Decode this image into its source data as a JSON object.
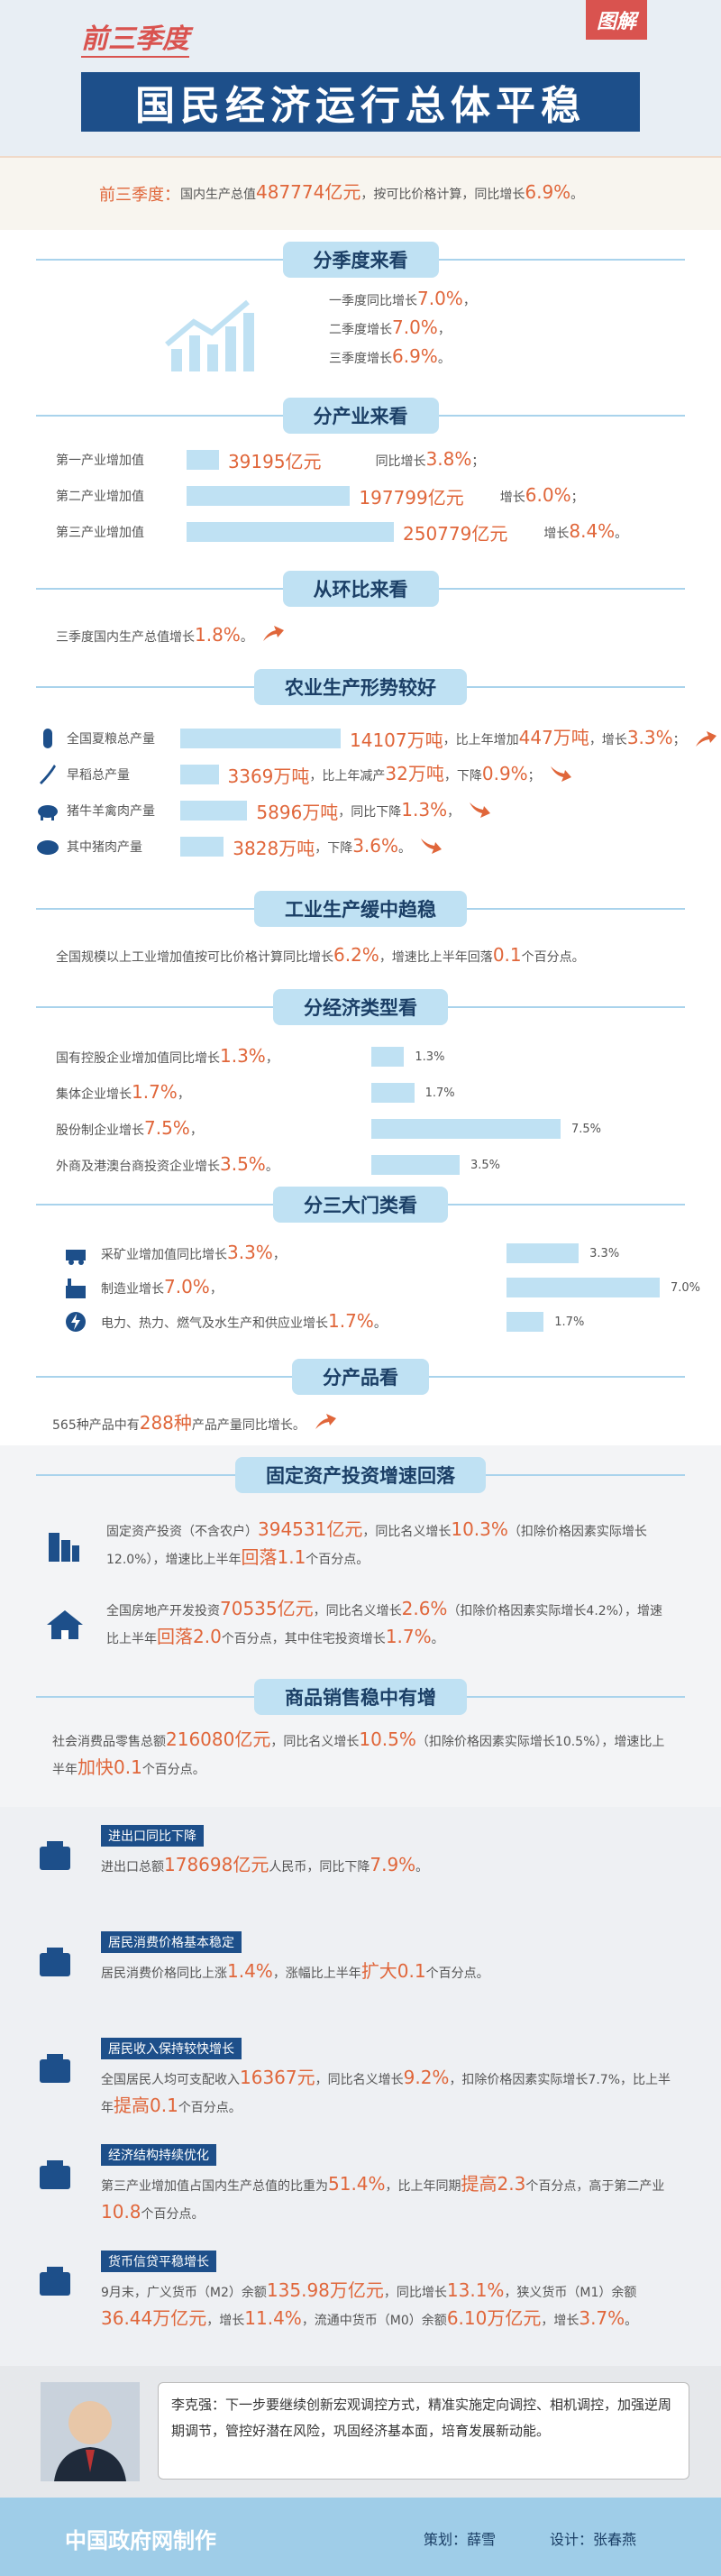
{
  "header": {
    "subtitle": "前三季度",
    "title": "国民经济运行总体平稳",
    "tag": "图解"
  },
  "intro": {
    "lead": "前三季度：",
    "text": [
      "国内生产总值",
      "487774亿元",
      "，按可比价格计算，同比增长",
      "6.9%",
      "。"
    ]
  },
  "quarterly": {
    "heading": "分季度来看",
    "lines": [
      [
        "一季度同比增长",
        "7.0%",
        "，"
      ],
      [
        "二季度增长",
        "7.0%",
        "，"
      ],
      [
        "三季度增长",
        "6.9%",
        "。"
      ]
    ]
  },
  "industry": {
    "heading": "分产业来看",
    "rows": [
      {
        "label": "第一产业增加值",
        "value": 39195,
        "value_label": "39195亿元",
        "growth": [
          "同比增长",
          "3.8%",
          "；"
        ]
      },
      {
        "label": "第二产业增加值",
        "value": 197799,
        "value_label": "197799亿元",
        "growth": [
          "增长",
          "6.0%",
          "；"
        ]
      },
      {
        "label": "第三产业增加值",
        "value": 250779,
        "value_label": "250779亿元",
        "growth": [
          "增长",
          "8.4%",
          "。"
        ]
      }
    ]
  },
  "qoq": {
    "heading": "从环比来看",
    "text": [
      "三季度国内生产总值增长",
      "1.8%",
      "。"
    ]
  },
  "agriculture": {
    "heading": "农业生产形势较好",
    "rows": [
      {
        "label": "全国夏粮总产量",
        "value": 14107,
        "value_label": "14107万吨",
        "text": [
          "，比上年增加",
          "447万吨",
          "，增长",
          "3.3%",
          "；"
        ]
      },
      {
        "label": "早稻总产量",
        "value": 3369,
        "value_label": "3369万吨",
        "text": [
          "，比上年减产",
          "32万吨",
          "，下降",
          "0.9%",
          "；"
        ]
      },
      {
        "label": "猪牛羊禽肉产量",
        "value": 5896,
        "value_label": "5896万吨",
        "text": [
          "，同比下降",
          "1.3%",
          "，"
        ]
      },
      {
        "label": "其中猪肉产量",
        "value": 3828,
        "value_label": "3828万吨",
        "text": [
          "，下降",
          "3.6%",
          "。"
        ]
      }
    ]
  },
  "industrial": {
    "heading": "工业生产缓中趋稳",
    "text": [
      "全国规模以上工业增加值按可比价格计算同比增长",
      "6.2%",
      "，增速比上半年回落",
      "0.1",
      "个百分点。"
    ]
  },
  "ownership": {
    "heading": "分经济类型看",
    "rows": [
      {
        "text": [
          "国有控股企业增加值同比增长",
          "1.3%",
          "，"
        ],
        "value": 1.3,
        "value_label": "1.3%"
      },
      {
        "text": [
          "集体企业增长",
          "1.7%",
          "，"
        ],
        "value": 1.7,
        "value_label": "1.7%"
      },
      {
        "text": [
          "股份制企业增长",
          "7.5%",
          "，"
        ],
        "value": 7.5,
        "value_label": "7.5%"
      },
      {
        "text": [
          "外商及港澳台商投资企业增长",
          "3.5%",
          "。"
        ],
        "value": 3.5,
        "value_label": "3.5%"
      }
    ]
  },
  "sectors": {
    "heading": "分三大门类看",
    "rows": [
      {
        "text": [
          "采矿业增加值同比增长",
          "3.3%",
          "，"
        ],
        "value": 3.3,
        "value_label": "3.3%"
      },
      {
        "text": [
          "制造业增长",
          "7.0%",
          "，"
        ],
        "value": 7.0,
        "value_label": "7.0%"
      },
      {
        "text": [
          "电力、热力、燃气及水生产和供应业增长",
          "1.7%",
          "。"
        ],
        "value": 1.7,
        "value_label": "1.7%"
      }
    ]
  },
  "products": {
    "heading": "分产品看",
    "text": [
      "565种产品中有",
      "288种",
      "产品产量同比增长。"
    ]
  },
  "investment": {
    "heading": "固定资产投资增速回落",
    "items": [
      [
        "固定资产投资（不含农户）",
        "394531亿元",
        "，同比名义增长",
        "10.3%",
        "（扣除价格因素实际增长12.0%），增速比上半年",
        "回落1.1",
        "个百分点。"
      ],
      [
        "全国房地产开发投资",
        "70535亿元",
        "，同比名义增长",
        "2.6%",
        "（扣除价格因素实际增长4.2%），增速比上半年",
        "回落2.0",
        "个百分点，其中住宅投资增长",
        "1.7%",
        "。"
      ]
    ]
  },
  "retail": {
    "heading": "商品销售稳中有增",
    "text": [
      "社会消费品零售总额",
      "216080亿元",
      "，同比名义增长",
      "10.5%",
      "（扣除价格因素实际增长10.5%），增速比上半年",
      "加快0.1",
      "个百分点。"
    ]
  },
  "indicators": [
    {
      "tag": "进出口同比下降",
      "text": [
        "进出口总额",
        "178698亿元",
        "人民币，同比下降",
        "7.9%",
        "。"
      ]
    },
    {
      "tag": "居民消费价格基本稳定",
      "text": [
        "居民消费价格同比上涨",
        "1.4%",
        "，涨幅比上半年",
        "扩大0.1",
        "个百分点。"
      ]
    },
    {
      "tag": "居民收入保持较快增长",
      "text": [
        "全国居民人均可支配收入",
        "16367元",
        "，同比名义增长",
        "9.2%",
        "，扣除价格因素实际增长7.7%，比上半年",
        "提高0.1",
        "个百分点。"
      ]
    },
    {
      "tag": "经济结构持续优化",
      "text": [
        "第三产业增加值占国内生产总值的比重为",
        "51.4%",
        "，比上年同期",
        "提高2.3",
        "个百分点，高于第二产业",
        "10.8",
        "个百分点。"
      ]
    },
    {
      "tag": "货币信贷平稳增长",
      "text": [
        "9月末，广义货币（M2）余额",
        "135.98万亿元",
        "，同比增长",
        "13.1%",
        "，狭义货币（M1）余额",
        "36.44万亿元",
        "，增长",
        "11.4%",
        "，流通中货币（M0）余额",
        "6.10万亿元",
        "，增长",
        "3.7%",
        "。"
      ]
    }
  ],
  "quote": {
    "speaker": "李克强：",
    "text": "下一步要继续创新宏观调控方式，精准实施定向调控、相机调控，加强逆周期调节，管控好潜在风险，巩固经济基本面，培育发展新动能。"
  },
  "footer": {
    "producer": "中国政府网制作",
    "planner": "策划：薛雪",
    "designer": "设计：张春燕"
  }
}
